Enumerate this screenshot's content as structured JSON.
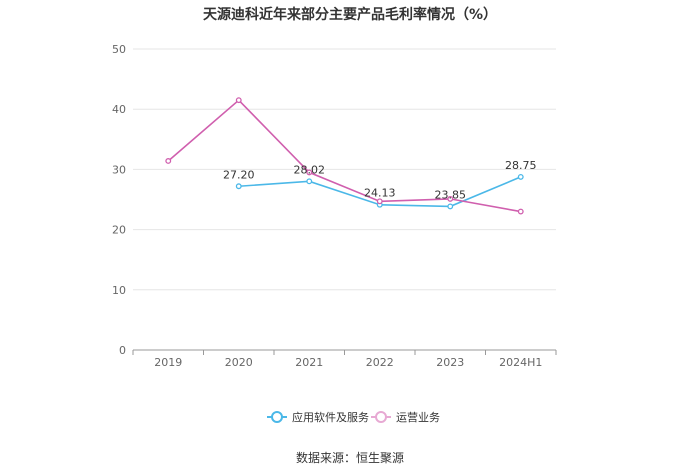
{
  "chart_data": {
    "type": "line",
    "title": "天源迪科近年来部分主要产品毛利率情况（%）",
    "xlabel": "",
    "ylabel": "",
    "categories": [
      "2019",
      "2020",
      "2021",
      "2022",
      "2023",
      "2024H1"
    ],
    "ylim": [
      0,
      50
    ],
    "yticks": [
      0,
      10,
      20,
      30,
      40,
      50
    ],
    "grid": true,
    "legend_position": "bottom",
    "series": [
      {
        "name": "应用软件及服务",
        "color": "#4bb8e8",
        "values": [
          null,
          27.2,
          28.02,
          24.13,
          23.85,
          28.75
        ],
        "labels": [
          "",
          "27.20",
          "28.02",
          "24.13",
          "23.85",
          "28.75"
        ]
      },
      {
        "name": "运营业务",
        "color": "#d05fae",
        "values": [
          31.4,
          41.5,
          29.5,
          24.7,
          25.1,
          23.0
        ],
        "labels": [
          "",
          "",
          "",
          "",
          "",
          ""
        ]
      }
    ]
  },
  "source": "数据来源：恒生聚源"
}
